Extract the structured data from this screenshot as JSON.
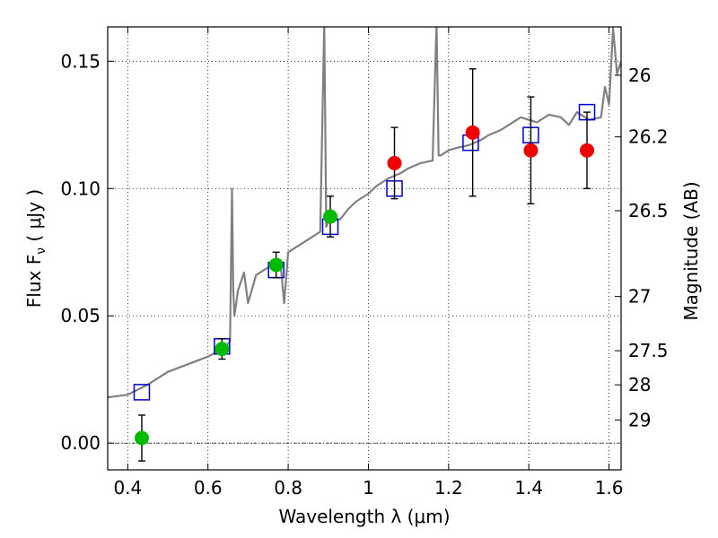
{
  "chart_data": {
    "type": "scatter",
    "xlabel": "Wavelength  λ (μm)",
    "ylabel": "Flux  F",
    "ylabel_sub": "ν",
    "ylabel_unit": "  ( μJy )",
    "y2label": "Magnitude (AB)",
    "xlim": [
      0.35,
      1.63
    ],
    "ylim": [
      -0.0105,
      0.1635
    ],
    "grid": true,
    "x_ticks": [
      0.4,
      0.6,
      0.8,
      1.0,
      1.2,
      1.4,
      1.6
    ],
    "x_tick_labels": [
      "0.4",
      "0.6",
      "0.8",
      "1",
      "1.2",
      "1.4",
      "1.6"
    ],
    "y_ticks": [
      0.0,
      0.05,
      0.1,
      0.15
    ],
    "y_tick_labels": [
      "0.00",
      "0.05",
      "0.10",
      "0.15"
    ],
    "y2_ticks": [
      {
        "label": "26",
        "flux": 0.1445
      },
      {
        "label": "26.2",
        "flux": 0.1203
      },
      {
        "label": "26.5",
        "flux": 0.0913
      },
      {
        "label": "27",
        "flux": 0.0576
      },
      {
        "label": "27.5",
        "flux": 0.0363
      },
      {
        "label": "28",
        "flux": 0.0229
      },
      {
        "label": "29",
        "flux": 0.0091
      }
    ],
    "colors": {
      "spectrum": "#808080",
      "model_photometry": "#0000cc",
      "green_points": "#00bb00",
      "red_points": "#ee0000",
      "errorbar": "#000000"
    },
    "series": [
      {
        "type": "line",
        "x": [
          0.35,
          0.4,
          0.45,
          0.5,
          0.55,
          0.6,
          0.625,
          0.645,
          0.655,
          0.66,
          0.663,
          0.666,
          0.675,
          0.69,
          0.7,
          0.72,
          0.74,
          0.76,
          0.78,
          0.79,
          0.8,
          0.82,
          0.84,
          0.86,
          0.88,
          0.89,
          0.895,
          0.9,
          0.93,
          0.95,
          0.97,
          1.0,
          1.02,
          1.05,
          1.08,
          1.1,
          1.13,
          1.16,
          1.17,
          1.175,
          1.18,
          1.2,
          1.22,
          1.25,
          1.28,
          1.3,
          1.33,
          1.35,
          1.38,
          1.4,
          1.42,
          1.45,
          1.48,
          1.5,
          1.52,
          1.55,
          1.58,
          1.59,
          1.6,
          1.61,
          1.62,
          1.63
        ],
        "y": [
          0.018,
          0.019,
          0.023,
          0.028,
          0.031,
          0.034,
          0.036,
          0.038,
          0.04,
          0.1,
          0.06,
          0.05,
          0.06,
          0.067,
          0.055,
          0.066,
          0.068,
          0.07,
          0.072,
          0.055,
          0.075,
          0.077,
          0.079,
          0.081,
          0.083,
          0.165,
          0.085,
          0.087,
          0.088,
          0.092,
          0.095,
          0.098,
          0.101,
          0.104,
          0.106,
          0.108,
          0.11,
          0.111,
          0.165,
          0.113,
          0.113,
          0.115,
          0.116,
          0.117,
          0.119,
          0.121,
          0.123,
          0.125,
          0.128,
          0.127,
          0.126,
          0.129,
          0.128,
          0.125,
          0.13,
          0.127,
          0.128,
          0.14,
          0.133,
          0.163,
          0.145,
          0.15
        ]
      },
      {
        "type": "scatter",
        "marker": "open-square",
        "x": [
          0.435,
          0.635,
          0.77,
          0.905,
          1.065,
          1.255,
          1.405,
          1.545
        ],
        "y": [
          0.02,
          0.038,
          0.068,
          0.085,
          0.1,
          0.118,
          0.121,
          0.13
        ]
      },
      {
        "type": "scatter",
        "marker": "filled-circle",
        "color": "green",
        "x": [
          0.435,
          0.635,
          0.77,
          0.905
        ],
        "y": [
          0.002,
          0.037,
          0.07,
          0.089
        ],
        "yerr": [
          0.009,
          0.004,
          0.005,
          0.008
        ]
      },
      {
        "type": "scatter",
        "marker": "filled-circle",
        "color": "red",
        "x": [
          1.065,
          1.26,
          1.405,
          1.545
        ],
        "y": [
          0.11,
          0.122,
          0.115,
          0.115
        ],
        "yerr": [
          0.014,
          0.025,
          0.021,
          0.015
        ]
      }
    ]
  }
}
